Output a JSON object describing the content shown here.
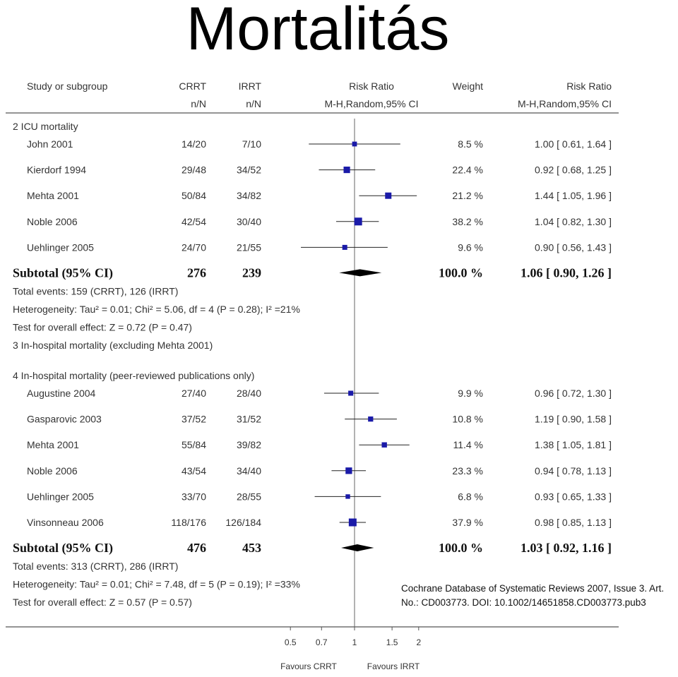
{
  "title": "Mortalitás",
  "chart_data": {
    "type": "forest",
    "columns": {
      "study": "Study or subgroup",
      "crrt": "CRRT",
      "irrt": "IRRT",
      "crrt_sub": "n/N",
      "irrt_sub": "n/N",
      "rr_plot": "Risk Ratio",
      "rr_plot_sub": "M-H,Random,95% CI",
      "weight": "Weight",
      "rr_text": "Risk Ratio",
      "rr_text_sub": "M-H,Random,95% CI"
    },
    "x_axis": {
      "scale": "log",
      "ticks": [
        {
          "v": 0.5,
          "l": "0.5"
        },
        {
          "v": 0.7,
          "l": "0.7"
        },
        {
          "v": 1,
          "l": "1"
        },
        {
          "v": 1.5,
          "l": "1.5"
        },
        {
          "v": 2,
          "l": "2"
        }
      ],
      "left_label": "Favours CRRT",
      "right_label": "Favours IRRT"
    },
    "groups": [
      {
        "label": "2 ICU mortality",
        "studies": [
          {
            "name": "John 2001",
            "crrt": "14/20",
            "irrt": "7/10",
            "weight_text": "8.5 %",
            "weight": 8.5,
            "rr": 1.0,
            "lo": 0.61,
            "hi": 1.64,
            "rr_text": "1.00 [ 0.61, 1.64 ]"
          },
          {
            "name": "Kierdorf 1994",
            "crrt": "29/48",
            "irrt": "34/52",
            "weight_text": "22.4 %",
            "weight": 22.4,
            "rr": 0.92,
            "lo": 0.68,
            "hi": 1.25,
            "rr_text": "0.92 [ 0.68, 1.25 ]"
          },
          {
            "name": "Mehta 2001",
            "crrt": "50/84",
            "irrt": "34/82",
            "weight_text": "21.2 %",
            "weight": 21.2,
            "rr": 1.44,
            "lo": 1.05,
            "hi": 1.96,
            "rr_text": "1.44 [ 1.05, 1.96 ]"
          },
          {
            "name": "Noble 2006",
            "crrt": "42/54",
            "irrt": "30/40",
            "weight_text": "38.2 %",
            "weight": 38.2,
            "rr": 1.04,
            "lo": 0.82,
            "hi": 1.3,
            "rr_text": "1.04 [ 0.82, 1.30 ]"
          },
          {
            "name": "Uehlinger 2005",
            "crrt": "24/70",
            "irrt": "21/55",
            "weight_text": "9.6 %",
            "weight": 9.6,
            "rr": 0.9,
            "lo": 0.56,
            "hi": 1.43,
            "rr_text": "0.90 [ 0.56, 1.43 ]"
          }
        ],
        "subtotal": {
          "label": "Subtotal (95% CI)",
          "crrt": "276",
          "irrt": "239",
          "weight_text": "100.0 %",
          "rr": 1.06,
          "lo": 0.9,
          "hi": 1.26,
          "rr_text": "1.06 [ 0.90, 1.26 ]"
        },
        "notes": [
          "Total events: 159 (CRRT), 126 (IRRT)",
          "Heterogeneity: Tau² = 0.01; Chi² = 5.06, df = 4 (P = 0.28); I² =21%",
          "Test for overall effect: Z = 0.72 (P = 0.47)"
        ]
      },
      {
        "label": "3 In-hospital mortality (excluding Mehta 2001)",
        "studies": [],
        "notes": []
      },
      {
        "label": "4 In-hospital mortality (peer-reviewed publications only)",
        "studies": [
          {
            "name": "Augustine 2004",
            "crrt": "27/40",
            "irrt": "28/40",
            "weight_text": "9.9 %",
            "weight": 9.9,
            "rr": 0.96,
            "lo": 0.72,
            "hi": 1.3,
            "rr_text": "0.96 [ 0.72, 1.30 ]"
          },
          {
            "name": "Gasparovic 2003",
            "crrt": "37/52",
            "irrt": "31/52",
            "weight_text": "10.8 %",
            "weight": 10.8,
            "rr": 1.19,
            "lo": 0.9,
            "hi": 1.58,
            "rr_text": "1.19 [ 0.90, 1.58 ]"
          },
          {
            "name": "Mehta 2001",
            "crrt": "55/84",
            "irrt": "39/82",
            "weight_text": "11.4 %",
            "weight": 11.4,
            "rr": 1.38,
            "lo": 1.05,
            "hi": 1.81,
            "rr_text": "1.38 [ 1.05, 1.81 ]"
          },
          {
            "name": "Noble 2006",
            "crrt": "43/54",
            "irrt": "34/40",
            "weight_text": "23.3 %",
            "weight": 23.3,
            "rr": 0.94,
            "lo": 0.78,
            "hi": 1.13,
            "rr_text": "0.94 [ 0.78, 1.13 ]"
          },
          {
            "name": "Uehlinger 2005",
            "crrt": "33/70",
            "irrt": "28/55",
            "weight_text": "6.8 %",
            "weight": 6.8,
            "rr": 0.93,
            "lo": 0.65,
            "hi": 1.33,
            "rr_text": "0.93 [ 0.65, 1.33 ]"
          },
          {
            "name": "Vinsonneau 2006",
            "crrt": "118/176",
            "irrt": "126/184",
            "weight_text": "37.9 %",
            "weight": 37.9,
            "rr": 0.98,
            "lo": 0.85,
            "hi": 1.13,
            "rr_text": "0.98 [ 0.85, 1.13 ]"
          }
        ],
        "subtotal": {
          "label": "Subtotal (95% CI)",
          "crrt": "476",
          "irrt": "453",
          "weight_text": "100.0 %",
          "rr": 1.03,
          "lo": 0.92,
          "hi": 1.16,
          "rr_text": "1.03 [ 0.92, 1.16 ]"
        },
        "notes": [
          "Total events: 313 (CRRT), 286 (IRRT)",
          "Heterogeneity: Tau² = 0.01; Chi² = 7.48, df = 5 (P = 0.19); I² =33%",
          "Test for overall effect: Z = 0.57 (P = 0.57)"
        ]
      }
    ],
    "citation": [
      "Cochrane Database of Systematic Reviews 2007, Issue 3. Art.",
      "No.: CD003773. DOI: 10.1002/14651858.CD003773.pub3"
    ]
  }
}
